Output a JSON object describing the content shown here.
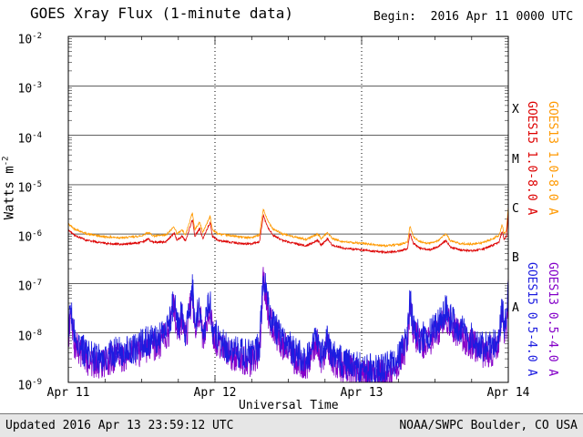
{
  "title": "GOES Xray Flux (1-minute data)",
  "begin_label": "Begin:  2016 Apr 11 0000 UTC",
  "footer": {
    "updated": "Updated 2016 Apr 13 23:59:12 UTC",
    "credit": "NOAA/SWPC Boulder, CO USA"
  },
  "axes": {
    "xlabel": "Universal Time",
    "ylabel_base": "Watts m",
    "ylabel_exp": "-2",
    "y_tick_exponents": [
      -2,
      -3,
      -4,
      -5,
      -6,
      -7,
      -8,
      -9
    ],
    "x_ticks": [
      {
        "t": 0,
        "label": "Apr 11"
      },
      {
        "t": 24,
        "label": "Apr 12"
      },
      {
        "t": 48,
        "label": "Apr 13"
      },
      {
        "t": 72,
        "label": "Apr 14"
      }
    ],
    "class_bands": [
      {
        "label": "X",
        "exp": -3.5
      },
      {
        "label": "M",
        "exp": -4.5
      },
      {
        "label": "C",
        "exp": -5.5
      },
      {
        "label": "B",
        "exp": -6.5
      },
      {
        "label": "A",
        "exp": -7.5
      }
    ]
  },
  "legend": [
    {
      "id": "goes15-long",
      "label": "GOES15 1.0-8.0 A",
      "color": "#dd0000"
    },
    {
      "id": "goes13-long",
      "label": "GOES13 1.0-8.0 A",
      "color": "#ff9900"
    },
    {
      "id": "goes15-short",
      "label": "GOES15 0.5-4.0 A",
      "color": "#1c1ce0"
    },
    {
      "id": "goes13-short",
      "label": "GOES13 0.5-4.0 A",
      "color": "#8400c8"
    }
  ],
  "render": {
    "seed": 42,
    "sample_hours": 0.05
  },
  "chart_data": {
    "type": "line",
    "title": "GOES Xray Flux (1-minute data)",
    "x_unit": "hours since 2016 Apr 11 0000 UTC",
    "xlim": [
      0,
      72
    ],
    "ylim_exp": [
      -9,
      -2
    ],
    "y_scale": "log",
    "grid": "decade horizontal lines, dotted day boundaries",
    "series": [
      {
        "name": "GOES13 1.0-8.0 A",
        "color": "#ff9900",
        "noise_dex": 0.02,
        "points": [
          [
            0,
            1.6e-06
          ],
          [
            1,
            1.28e-06
          ],
          [
            3,
            1.01e-06
          ],
          [
            6,
            8.8e-07
          ],
          [
            9,
            8.4e-07
          ],
          [
            12,
            9.2e-07
          ],
          [
            13,
            1.08e-06
          ],
          [
            14,
            9.2e-07
          ],
          [
            16,
            9.5e-07
          ],
          [
            17.3,
            1.42e-06
          ],
          [
            17.8,
            1.01e-06
          ],
          [
            18.6,
            1.22e-06
          ],
          [
            19.2,
            9.7e-07
          ],
          [
            20.3,
            2.7e-06
          ],
          [
            20.7,
            1.22e-06
          ],
          [
            21.5,
            1.76e-06
          ],
          [
            22,
            1.08e-06
          ],
          [
            23.2,
            2.3e-06
          ],
          [
            23.6,
            1.22e-06
          ],
          [
            24.5,
            1.01e-06
          ],
          [
            26,
            9.5e-07
          ],
          [
            28,
            8.8e-07
          ],
          [
            30,
            8.5e-07
          ],
          [
            31.3,
            9.5e-07
          ],
          [
            31.9,
            3.2e-06
          ],
          [
            32.6,
            1.89e-06
          ],
          [
            33.5,
            1.28e-06
          ],
          [
            35,
            1.01e-06
          ],
          [
            37,
            8.8e-07
          ],
          [
            39,
            7.8e-07
          ],
          [
            40.8,
            1.01e-06
          ],
          [
            41.4,
            8.1e-07
          ],
          [
            42.4,
            1.08e-06
          ],
          [
            43.2,
            8.1e-07
          ],
          [
            45,
            7e-07
          ],
          [
            48,
            6.5e-07
          ],
          [
            50,
            6.1e-07
          ],
          [
            52,
            5.8e-07
          ],
          [
            54,
            6.1e-07
          ],
          [
            55.5,
            6.8e-07
          ],
          [
            55.9,
            1.42e-06
          ],
          [
            56.5,
            8.8e-07
          ],
          [
            57.5,
            7e-07
          ],
          [
            59,
            6.5e-07
          ],
          [
            60.5,
            7.4e-07
          ],
          [
            61.8,
            1.01e-06
          ],
          [
            62.5,
            7.4e-07
          ],
          [
            64,
            6.5e-07
          ],
          [
            66,
            6.2e-07
          ],
          [
            68,
            6.8e-07
          ],
          [
            69.5,
            8.1e-07
          ],
          [
            70.5,
            9.5e-07
          ],
          [
            71,
            1.55e-06
          ],
          [
            71.3,
            1.01e-06
          ],
          [
            71.7,
            1.22e-06
          ],
          [
            72,
            3.8e-06
          ]
        ]
      },
      {
        "name": "GOES15 1.0-8.0 A",
        "color": "#dd0000",
        "noise_dex": 0.02,
        "points": [
          [
            0,
            1.2e-06
          ],
          [
            1,
            9.5e-07
          ],
          [
            3,
            7.5e-07
          ],
          [
            6,
            6.5e-07
          ],
          [
            9,
            6.2e-07
          ],
          [
            12,
            6.8e-07
          ],
          [
            13,
            8e-07
          ],
          [
            14,
            6.8e-07
          ],
          [
            16,
            7e-07
          ],
          [
            17.3,
            1.05e-06
          ],
          [
            17.8,
            7.5e-07
          ],
          [
            18.6,
            9e-07
          ],
          [
            19.2,
            7.2e-07
          ],
          [
            20.3,
            2e-06
          ],
          [
            20.7,
            9e-07
          ],
          [
            21.5,
            1.3e-06
          ],
          [
            22,
            8e-07
          ],
          [
            23.2,
            1.7e-06
          ],
          [
            23.6,
            9e-07
          ],
          [
            24.5,
            7.5e-07
          ],
          [
            26,
            7e-07
          ],
          [
            28,
            6.5e-07
          ],
          [
            30,
            6.3e-07
          ],
          [
            31.3,
            7e-07
          ],
          [
            31.9,
            2.4e-06
          ],
          [
            32.6,
            1.4e-06
          ],
          [
            33.5,
            9.5e-07
          ],
          [
            35,
            7.5e-07
          ],
          [
            37,
            6.5e-07
          ],
          [
            39,
            5.8e-07
          ],
          [
            40.8,
            7.5e-07
          ],
          [
            41.4,
            6e-07
          ],
          [
            42.4,
            8e-07
          ],
          [
            43.2,
            6e-07
          ],
          [
            45,
            5.2e-07
          ],
          [
            48,
            4.8e-07
          ],
          [
            50,
            4.5e-07
          ],
          [
            52,
            4.3e-07
          ],
          [
            54,
            4.5e-07
          ],
          [
            55.5,
            5e-07
          ],
          [
            55.9,
            1.05e-06
          ],
          [
            56.5,
            6.5e-07
          ],
          [
            57.5,
            5.2e-07
          ],
          [
            59,
            4.8e-07
          ],
          [
            60.5,
            5.5e-07
          ],
          [
            61.8,
            7.5e-07
          ],
          [
            62.5,
            5.5e-07
          ],
          [
            64,
            4.8e-07
          ],
          [
            66,
            4.6e-07
          ],
          [
            68,
            5e-07
          ],
          [
            69.5,
            6e-07
          ],
          [
            70.5,
            7e-07
          ],
          [
            71,
            1.15e-06
          ],
          [
            71.3,
            7.5e-07
          ],
          [
            71.7,
            9e-07
          ],
          [
            72,
            2.8e-06
          ]
        ]
      },
      {
        "name": "GOES13 0.5-4.0 A",
        "color": "#8400c8",
        "noise_dex": 0.32,
        "points": [
          [
            0,
            9e-09
          ],
          [
            0.5,
            2.2e-08
          ],
          [
            1,
            6e-09
          ],
          [
            2,
            3.8e-09
          ],
          [
            3.5,
            2.6e-09
          ],
          [
            5,
            2.3e-09
          ],
          [
            7,
            3e-09
          ],
          [
            9,
            3.4e-09
          ],
          [
            11,
            3.8e-09
          ],
          [
            13,
            5.3e-09
          ],
          [
            15,
            6e-09
          ],
          [
            16.5,
            1.1e-08
          ],
          [
            17.3,
            3.8e-08
          ],
          [
            17.8,
            9e-09
          ],
          [
            18.6,
            1.9e-08
          ],
          [
            19.2,
            6.8e-09
          ],
          [
            20.3,
            6.8e-08
          ],
          [
            20.7,
            1.1e-08
          ],
          [
            21.5,
            3e-08
          ],
          [
            22,
            7.5e-09
          ],
          [
            23.2,
            3.8e-08
          ],
          [
            23.6,
            9e-09
          ],
          [
            24.5,
            6e-09
          ],
          [
            26,
            3.8e-09
          ],
          [
            28,
            3e-09
          ],
          [
            30,
            2.6e-09
          ],
          [
            31.3,
            4.5e-09
          ],
          [
            31.9,
            1.2e-07
          ],
          [
            32.6,
            3e-08
          ],
          [
            33.5,
            1.1e-08
          ],
          [
            35,
            6e-09
          ],
          [
            37,
            3e-09
          ],
          [
            39,
            2.3e-09
          ],
          [
            40.8,
            6e-09
          ],
          [
            41.4,
            3e-09
          ],
          [
            42.4,
            5.3e-09
          ],
          [
            43.2,
            2.6e-09
          ],
          [
            45,
            1.9e-09
          ],
          [
            48,
            1.5e-09
          ],
          [
            50,
            1.4e-09
          ],
          [
            52,
            1.5e-09
          ],
          [
            54,
            2.3e-09
          ],
          [
            55.5,
            6e-09
          ],
          [
            55.9,
            3.4e-08
          ],
          [
            56.5,
            1.1e-08
          ],
          [
            57.5,
            6e-09
          ],
          [
            59,
            6.8e-09
          ],
          [
            60.5,
            1.1e-08
          ],
          [
            61.8,
            2.2e-08
          ],
          [
            62.5,
            1.5e-08
          ],
          [
            64,
            9e-09
          ],
          [
            66,
            6e-09
          ],
          [
            68,
            3.8e-09
          ],
          [
            69.5,
            4.5e-09
          ],
          [
            70.5,
            7.5e-09
          ],
          [
            71,
            2.6e-08
          ],
          [
            71.3,
            1.1e-08
          ],
          [
            71.7,
            1.5e-08
          ],
          [
            72,
            8e-08
          ]
        ]
      },
      {
        "name": "GOES15 0.5-4.0 A",
        "color": "#1c1ce0",
        "noise_dex": 0.32,
        "points": [
          [
            0,
            1.2e-08
          ],
          [
            0.5,
            3e-08
          ],
          [
            1,
            8e-09
          ],
          [
            2,
            5e-09
          ],
          [
            3.5,
            3.5e-09
          ],
          [
            5,
            3e-09
          ],
          [
            7,
            4e-09
          ],
          [
            9,
            4.5e-09
          ],
          [
            11,
            5e-09
          ],
          [
            13,
            7e-09
          ],
          [
            15,
            8e-09
          ],
          [
            16.5,
            1.5e-08
          ],
          [
            17.3,
            5e-08
          ],
          [
            17.8,
            1.2e-08
          ],
          [
            18.6,
            2.5e-08
          ],
          [
            19.2,
            9e-09
          ],
          [
            20.3,
            9e-08
          ],
          [
            20.7,
            1.5e-08
          ],
          [
            21.5,
            4e-08
          ],
          [
            22,
            1e-08
          ],
          [
            23.2,
            5e-08
          ],
          [
            23.6,
            1.2e-08
          ],
          [
            24.5,
            8e-09
          ],
          [
            26,
            5e-09
          ],
          [
            28,
            4e-09
          ],
          [
            30,
            3.5e-09
          ],
          [
            31.3,
            6e-09
          ],
          [
            31.9,
            1.6e-07
          ],
          [
            32.6,
            4e-08
          ],
          [
            33.5,
            1.5e-08
          ],
          [
            35,
            8e-09
          ],
          [
            37,
            4e-09
          ],
          [
            39,
            3e-09
          ],
          [
            40.8,
            8e-09
          ],
          [
            41.4,
            4e-09
          ],
          [
            42.4,
            7e-09
          ],
          [
            43.2,
            3.5e-09
          ],
          [
            45,
            2.5e-09
          ],
          [
            48,
            2e-09
          ],
          [
            50,
            1.8e-09
          ],
          [
            52,
            2e-09
          ],
          [
            54,
            3e-09
          ],
          [
            55.5,
            8e-09
          ],
          [
            55.9,
            4.5e-08
          ],
          [
            56.5,
            1.5e-08
          ],
          [
            57.5,
            8e-09
          ],
          [
            59,
            9e-09
          ],
          [
            60.5,
            1.5e-08
          ],
          [
            61.8,
            3e-08
          ],
          [
            62.5,
            2e-08
          ],
          [
            64,
            1.2e-08
          ],
          [
            66,
            8e-09
          ],
          [
            68,
            5e-09
          ],
          [
            69.5,
            6e-09
          ],
          [
            70.5,
            1e-08
          ],
          [
            71,
            3.5e-08
          ],
          [
            71.3,
            1.5e-08
          ],
          [
            71.7,
            2e-08
          ],
          [
            72,
            1.1e-07
          ]
        ]
      }
    ]
  }
}
